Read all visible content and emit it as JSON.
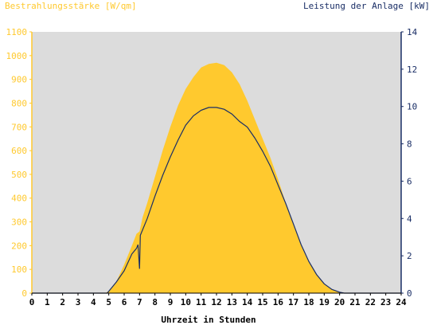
{
  "chart_data": {
    "type": "area",
    "title_left": "Bestrahlungsstärke [W/qm]",
    "title_right": "Leistung der Anlage [kW]",
    "xlabel": "Uhrzeit in Stunden",
    "xlim": [
      0,
      24
    ],
    "ylim_left": [
      0,
      1100
    ],
    "ylim_right": [
      0,
      14
    ],
    "x_ticks": [
      "0",
      "1",
      "2",
      "3",
      "4",
      "5",
      "6",
      "7",
      "8",
      "9",
      "10",
      "11",
      "12",
      "13",
      "14",
      "15",
      "16",
      "17",
      "18",
      "19",
      "20",
      "21",
      "22",
      "23",
      "24"
    ],
    "y_ticks_left": [
      "0",
      "100",
      "200",
      "300",
      "400",
      "500",
      "600",
      "700",
      "800",
      "900",
      "1000",
      "1100"
    ],
    "y_ticks_right": [
      "0",
      "2",
      "4",
      "6",
      "8",
      "10",
      "12",
      "14"
    ],
    "grid": false,
    "colors": {
      "irradiance": "#ffc92e",
      "power": "#1a2e66",
      "plot_background": "#dcdcdc",
      "axis_left": "#ffc92e",
      "axis_right": "#1a2e66"
    },
    "series": [
      {
        "name": "Bestrahlungsstärke",
        "axis": "left",
        "style": "area",
        "x": [
          0,
          4.8,
          5.0,
          5.5,
          6.0,
          6.5,
          6.8,
          7.0,
          7.2,
          7.5,
          8.0,
          8.5,
          9.0,
          9.5,
          10.0,
          10.5,
          11.0,
          11.5,
          12.0,
          12.5,
          13.0,
          13.5,
          14.0,
          14.5,
          15.0,
          15.5,
          16.0,
          16.5,
          17.0,
          17.5,
          18.0,
          18.5,
          19.0,
          19.5,
          20.0,
          20.3,
          24
        ],
        "y": [
          0,
          0,
          10,
          50,
          120,
          200,
          250,
          260,
          320,
          380,
          490,
          600,
          700,
          790,
          860,
          910,
          950,
          965,
          970,
          960,
          930,
          880,
          810,
          730,
          650,
          570,
          480,
          380,
          290,
          200,
          130,
          80,
          40,
          15,
          5,
          0,
          0
        ]
      },
      {
        "name": "Leistung",
        "axis": "right",
        "style": "line",
        "x": [
          0,
          4.9,
          5.2,
          5.5,
          6.0,
          6.5,
          6.8,
          6.9,
          7.0,
          7.05,
          7.1,
          7.5,
          8.0,
          8.5,
          9.0,
          9.5,
          10.0,
          10.5,
          11.0,
          11.5,
          12.0,
          12.5,
          13.0,
          13.5,
          14.0,
          14.5,
          15.0,
          15.5,
          16.0,
          16.5,
          17.0,
          17.5,
          18.0,
          18.5,
          19.0,
          19.5,
          20.0,
          20.3,
          24
        ],
        "y": [
          0,
          0,
          0.3,
          0.6,
          1.2,
          2.1,
          2.4,
          2.6,
          1.3,
          3.1,
          3.2,
          4.0,
          5.2,
          6.3,
          7.3,
          8.2,
          9.0,
          9.5,
          9.8,
          9.95,
          9.95,
          9.85,
          9.6,
          9.2,
          8.9,
          8.3,
          7.6,
          6.8,
          5.8,
          4.8,
          3.7,
          2.6,
          1.7,
          1.0,
          0.5,
          0.2,
          0.05,
          0,
          0
        ]
      }
    ]
  }
}
